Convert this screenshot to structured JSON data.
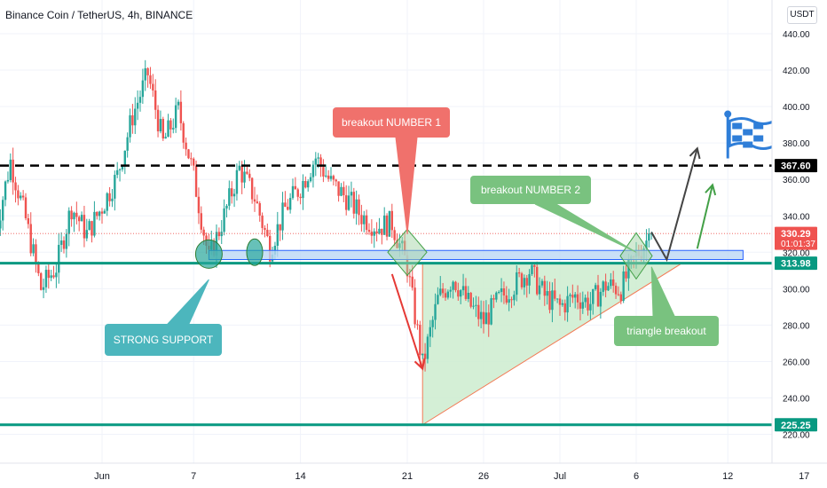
{
  "header": {
    "symbol_title": "Binance Coin / TetherUS, 4h, BINANCE",
    "currency_label": "USDT"
  },
  "colors": {
    "up": "#26a69a",
    "down": "#ef5350",
    "support_line": "#089981",
    "resistance_dash": "#000000",
    "support_zone_fill": "#bcd7f5",
    "support_zone_stroke": "#2962ff",
    "triangle_fill": "#cdeccf",
    "triangle_stroke": "#f37a55",
    "callout_red": "#f0716c",
    "callout_green": "#79c27f",
    "callout_teal": "#4cb6bd",
    "arrow_red": "#e53935",
    "arrow_green": "#43a047",
    "arrow_black": "#444444",
    "flag": "#2f7ed8"
  },
  "chart_data": {
    "type": "candlestick",
    "ylim": [
      215,
      445
    ],
    "y_ticks": [
      220,
      240,
      260,
      280,
      300,
      320,
      340,
      360,
      380,
      400,
      420,
      440
    ],
    "x_ticks": [
      {
        "label": "Jun",
        "date": "2021-06-01"
      },
      {
        "label": "7",
        "date": "2021-06-07"
      },
      {
        "label": "14",
        "date": "2021-06-14"
      },
      {
        "label": "21",
        "date": "2021-06-21"
      },
      {
        "label": "26",
        "date": "2021-06-26"
      },
      {
        "label": "Jul",
        "date": "2021-07-01"
      },
      {
        "label": "6",
        "date": "2021-07-06"
      },
      {
        "label": "12",
        "date": "2021-07-12"
      },
      {
        "label": "17",
        "date": "2021-07-17"
      }
    ],
    "close_path": [
      [
        "2021-05-25",
        330
      ],
      [
        "2021-05-26",
        370
      ],
      [
        "2021-05-27",
        338
      ],
      [
        "2021-05-28",
        300
      ],
      [
        "2021-05-29",
        312
      ],
      [
        "2021-05-30",
        345
      ],
      [
        "2021-05-31",
        330
      ],
      [
        "2021-06-01",
        345
      ],
      [
        "2021-06-02",
        362
      ],
      [
        "2021-06-03",
        395
      ],
      [
        "2021-06-04",
        418
      ],
      [
        "2021-06-05",
        380
      ],
      [
        "2021-06-06",
        398
      ],
      [
        "2021-06-07",
        362
      ],
      [
        "2021-06-08",
        316
      ],
      [
        "2021-06-09",
        340
      ],
      [
        "2021-06-10",
        366
      ],
      [
        "2021-06-11",
        350
      ],
      [
        "2021-06-12",
        322
      ],
      [
        "2021-06-13",
        344
      ],
      [
        "2021-06-14",
        356
      ],
      [
        "2021-06-15",
        372
      ],
      [
        "2021-06-16",
        358
      ],
      [
        "2021-06-17",
        350
      ],
      [
        "2021-06-18",
        340
      ],
      [
        "2021-06-19",
        334
      ],
      [
        "2021-06-20",
        336
      ],
      [
        "2021-06-21",
        312
      ],
      [
        "2021-06-22",
        258
      ],
      [
        "2021-06-23",
        294
      ],
      [
        "2021-06-24",
        306
      ],
      [
        "2021-06-25",
        292
      ],
      [
        "2021-06-26",
        282
      ],
      [
        "2021-06-27",
        294
      ],
      [
        "2021-06-28",
        302
      ],
      [
        "2021-06-29",
        310
      ],
      [
        "2021-06-30",
        296
      ],
      [
        "2021-07-01",
        290
      ],
      [
        "2021-07-02",
        296
      ],
      [
        "2021-07-03",
        292
      ],
      [
        "2021-07-04",
        302
      ],
      [
        "2021-07-05",
        300
      ],
      [
        "2021-07-06",
        318
      ],
      [
        "2021-07-07",
        330.29
      ]
    ],
    "last_close": 330.29,
    "horizontal_levels": [
      {
        "name": "resistance",
        "value": 367.6,
        "label": "367.60",
        "style": "dashed"
      },
      {
        "name": "neckline",
        "value": 313.98,
        "label": "313.98",
        "style": "solid"
      },
      {
        "name": "bottom",
        "value": 225.25,
        "label": "225.25",
        "style": "solid"
      }
    ],
    "support_zone": {
      "from_date": "2021-06-08",
      "to_date": "2021-07-13",
      "y_low": 316,
      "y_high": 321
    },
    "triangle": {
      "vertices": [
        [
          "2021-06-22",
          313.98
        ],
        [
          "2021-07-09",
          313.98
        ],
        [
          "2021-06-22",
          225.25
        ]
      ]
    },
    "price_tag": {
      "value": "330.29",
      "countdown": "01:01:37"
    },
    "annotations": [
      {
        "name": "strong-support",
        "text": "STRONG SUPPORT",
        "color": "teal"
      },
      {
        "name": "breakout-1",
        "text": "breakout NUMBER 1",
        "color": "red"
      },
      {
        "name": "breakout-2",
        "text": "breakout NUMBER 2",
        "color": "green"
      },
      {
        "name": "triangle-breakout",
        "text": "triangle breakout",
        "color": "green"
      }
    ]
  }
}
